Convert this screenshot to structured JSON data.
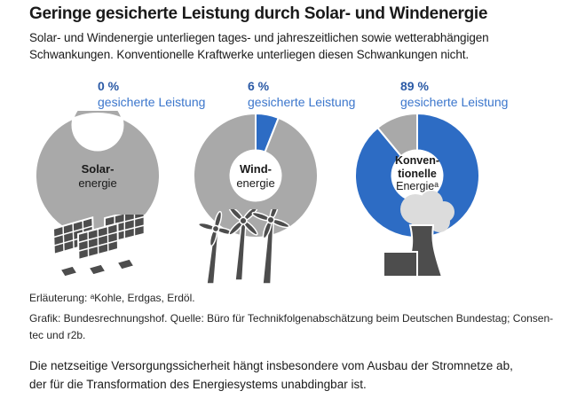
{
  "header": {
    "title": "Geringe gesicherte Leistung durch Solar- und Windenergie",
    "subtitle_lines": [
      "Solar- und Windenergie unterliegen tages- und jahreszeitlichen sowie wetterabhängigen",
      "Schwankungen. Konventionelle Kraftwerke unterliegen diesen Schwankungen nicht."
    ]
  },
  "chart_data": {
    "type": "pie",
    "subtype": "donut",
    "unit": "%",
    "legend_position": "none",
    "colors": {
      "secured": "#2d6cc4",
      "remainder": "#a9a9a9"
    },
    "donuts": [
      {
        "name": "Solarenergie",
        "center_label_bold": [
          "Solar-"
        ],
        "center_label_rest": "energie",
        "value_pct": 0,
        "value_label": "0 %",
        "caption": "gesicherte Leistung",
        "values": [
          0,
          100
        ]
      },
      {
        "name": "Windenergie",
        "center_label_bold": [
          "Wind-"
        ],
        "center_label_rest": "energie",
        "value_pct": 6,
        "value_label": "6 %",
        "caption": "gesicherte Leistung",
        "values": [
          6,
          94
        ]
      },
      {
        "name": "Konventionelle Energie",
        "center_label_bold": [
          "Konven-",
          "tionelle"
        ],
        "center_label_rest": "Energieᵃ",
        "value_pct": 89,
        "value_label": "89 %",
        "caption": "gesicherte Leistung",
        "values": [
          89,
          11
        ]
      }
    ]
  },
  "icons": {
    "solar-panels-icon": "svg-shape",
    "wind-turbines-icon": "svg-shape",
    "power-plant-icon": "svg-shape",
    "smoke-cloud-icon": "svg-shape"
  },
  "footnotes": {
    "explanation": "Erläuterung: ᵃKohle, Erdgas, Erdöl.",
    "source_lines": [
      "Grafik: Bundesrechnungshof. Quelle: Büro für Technikfolgenabschätzung beim Deutschen Bundestag; Consen-",
      "tec und r2b."
    ]
  },
  "conclusion_lines": [
    "Die netzseitige Versorgungssicherheit hängt insbesondere vom Ausbau der Stromnetze ab,",
    "der für die Transformation des Energiesystems unabdingbar ist."
  ],
  "theme": {
    "accent": "#3b76cc",
    "accent_dark": "#2b5aa6",
    "icon_dark": "#4d4d4d",
    "cloud_gray": "#dcdcdc"
  }
}
